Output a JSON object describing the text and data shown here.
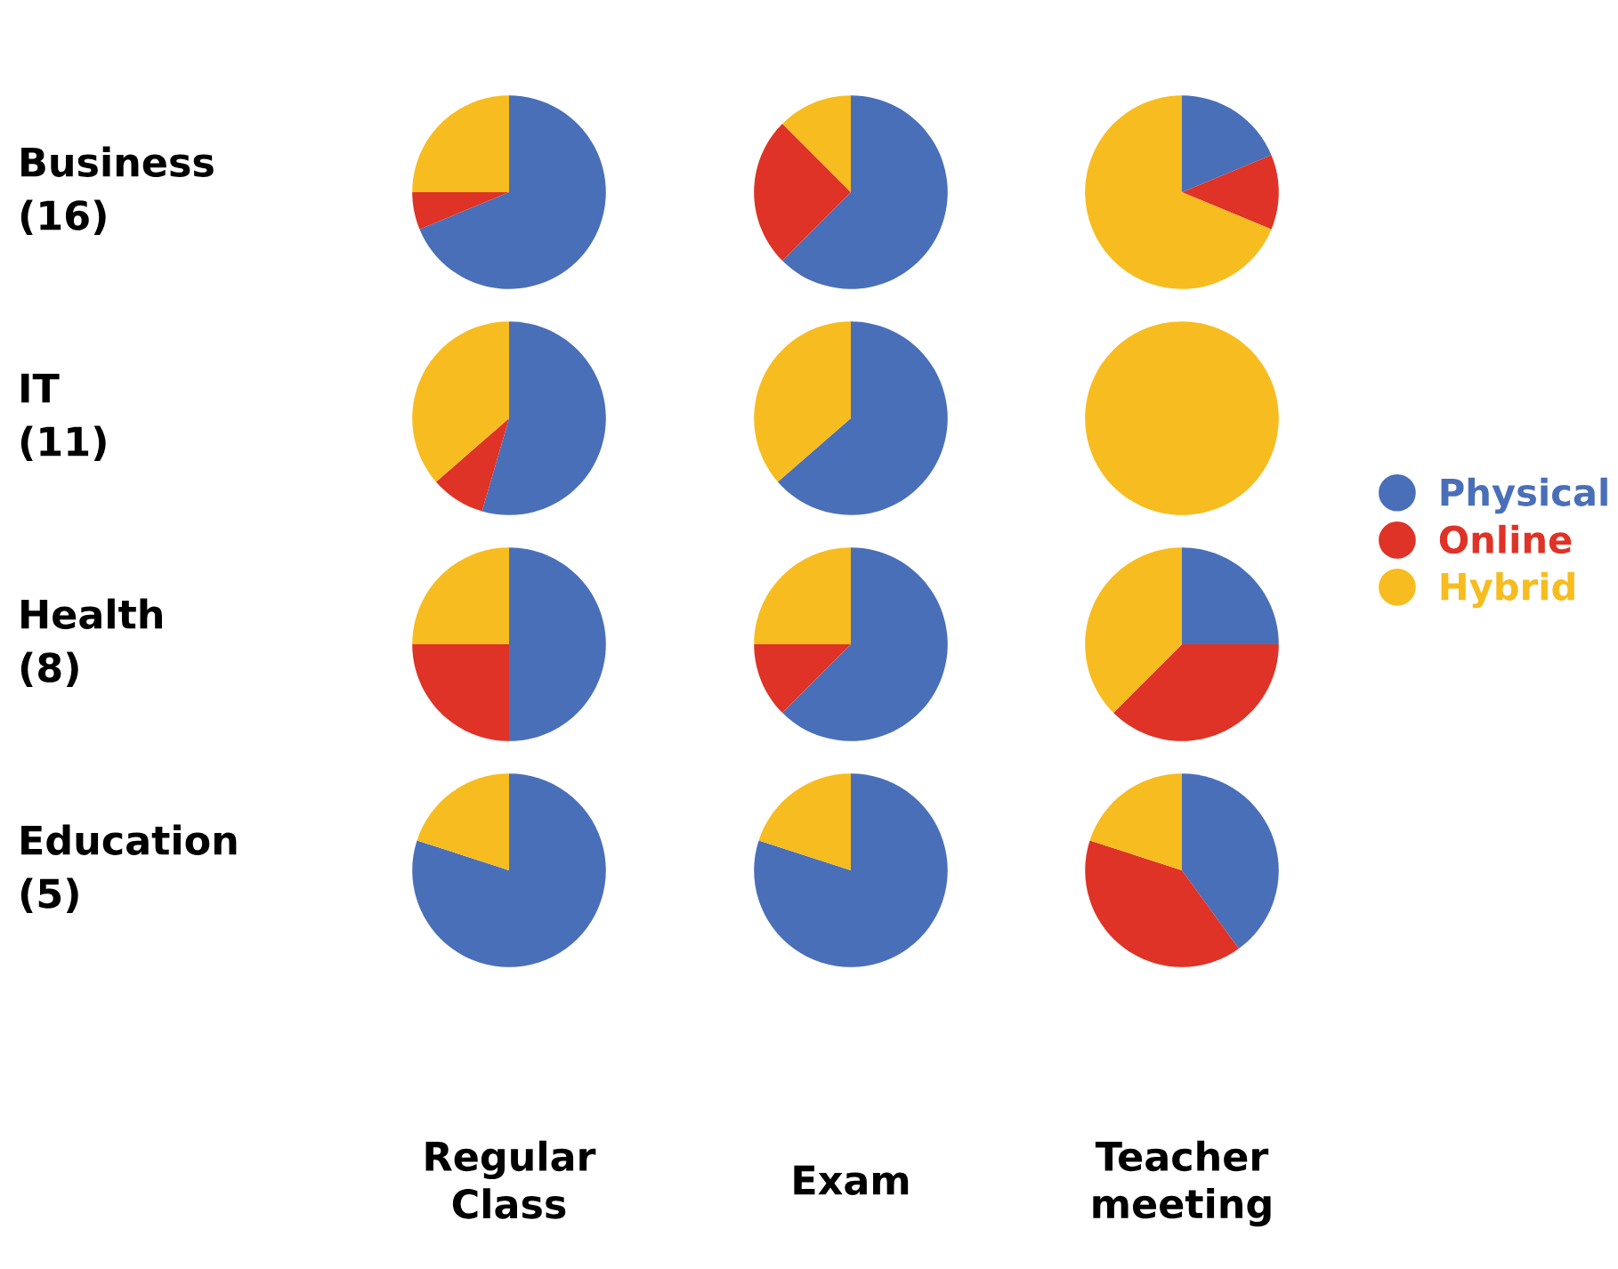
{
  "chart_data": [
    {
      "type": "pie",
      "ylabel": "Business\n(16)",
      "categories": [
        "Physical",
        "Online",
        "Hybrid"
      ],
      "values": [
        68.75,
        6.25,
        25
      ],
      "colors": [
        "#4a6fb9",
        "#de3326",
        "#f7bc1f"
      ],
      "legend": "right"
    },
    {
      "type": "pie",
      "values": [
        62.5,
        25,
        12.5
      ],
      "colors": [
        "#4a6fb9",
        "#de3326",
        "#f7bc1f"
      ]
    },
    {
      "type": "pie",
      "values": [
        18.75,
        12.5,
        68.75
      ],
      "colors": [
        "#4a6fb9",
        "#de3326",
        "#f7bc1f"
      ]
    },
    {
      "type": "pie",
      "ylabel": "IT\n(11)",
      "values": [
        54.5,
        9.1,
        36.4
      ],
      "colors": [
        "#4a6fb9",
        "#de3326",
        "#f7bc1f"
      ]
    },
    {
      "type": "pie",
      "values": [
        63.6,
        0,
        36.4
      ],
      "colors": [
        "#4a6fb9",
        "#de3326",
        "#f7bc1f"
      ]
    },
    {
      "type": "pie",
      "values": [
        0,
        0,
        100
      ],
      "colors": [
        "#4a6fb9",
        "#de3326",
        "#f7bc1f"
      ]
    },
    {
      "type": "pie",
      "ylabel": "Health\n(8)",
      "values": [
        50,
        25,
        25
      ],
      "colors": [
        "#4a6fb9",
        "#de3326",
        "#f7bc1f"
      ]
    },
    {
      "type": "pie",
      "values": [
        62.5,
        12.5,
        25
      ],
      "colors": [
        "#4a6fb9",
        "#de3326",
        "#f7bc1f"
      ]
    },
    {
      "type": "pie",
      "values": [
        25,
        37.5,
        37.5
      ],
      "colors": [
        "#4a6fb9",
        "#de3326",
        "#f7bc1f"
      ]
    },
    {
      "type": "pie",
      "ylabel": "Education\n(5)",
      "xlabel": "Regular\nClass",
      "values": [
        80,
        0,
        20
      ],
      "colors": [
        "#4a6fb9",
        "#de3326",
        "#f7bc1f"
      ]
    },
    {
      "type": "pie",
      "xlabel": "Exam",
      "values": [
        80,
        0,
        20
      ],
      "colors": [
        "#4a6fb9",
        "#de3326",
        "#f7bc1f"
      ]
    },
    {
      "type": "pie",
      "xlabel": "Teacher\nmeeting",
      "values": [
        40,
        40,
        20
      ],
      "colors": [
        "#4a6fb9",
        "#de3326",
        "#f7bc1f"
      ]
    }
  ]
}
